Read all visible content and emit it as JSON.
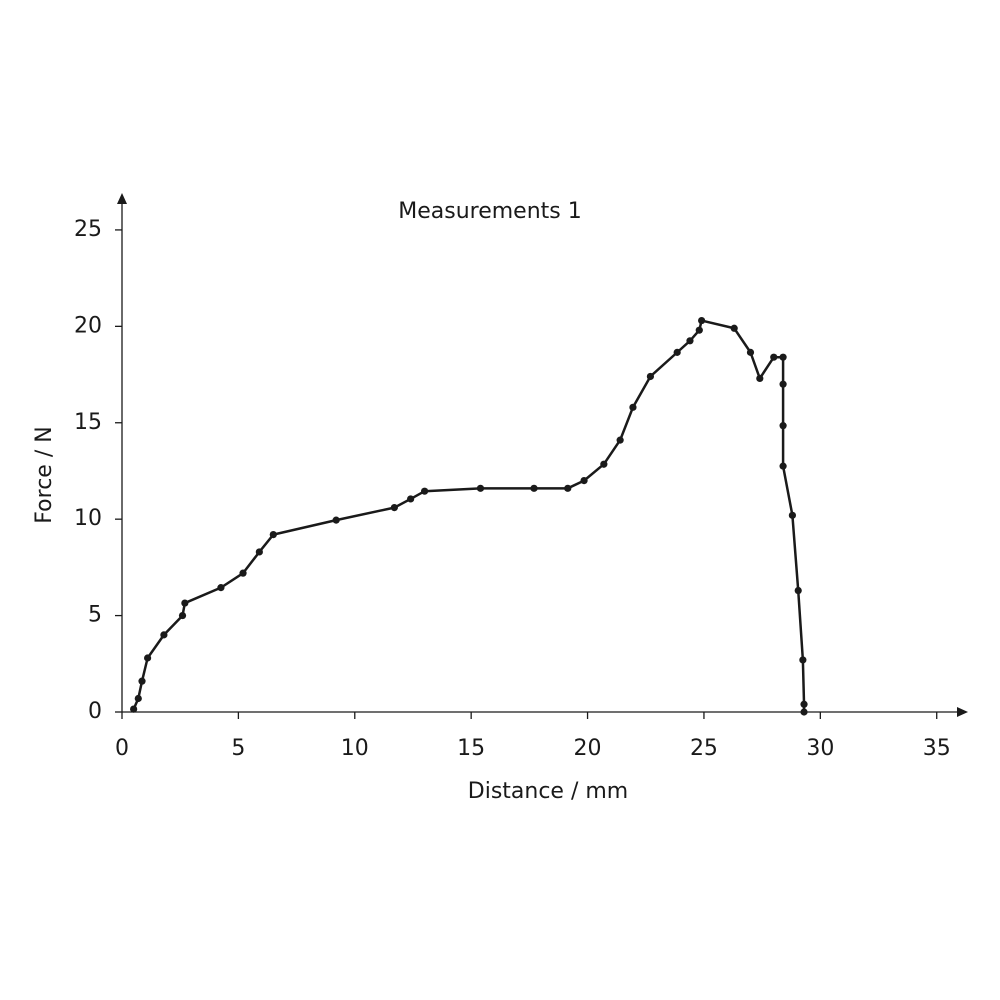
{
  "chart_data": {
    "type": "line",
    "title": "Measurements 1",
    "xlabel": "Distance / mm",
    "ylabel": "Force / N",
    "xlim": [
      0,
      36
    ],
    "ylim": [
      0,
      26.5
    ],
    "xticks": [
      0,
      5,
      10,
      15,
      20,
      25,
      30,
      35
    ],
    "yticks": [
      0,
      5,
      10,
      15,
      20,
      25
    ],
    "markers": true,
    "series": [
      {
        "color": "#1a1a1a",
        "x": [
          0.5,
          0.7,
          0.86,
          1.1,
          1.8,
          2.6,
          2.7,
          4.25,
          5.2,
          5.9,
          6.5,
          9.2,
          11.7,
          12.4,
          13.0,
          15.4,
          17.7,
          19.15,
          19.85,
          20.7,
          21.4,
          21.95,
          22.7,
          23.85,
          24.4,
          24.8,
          24.9,
          26.3,
          27.0,
          27.4,
          28.0,
          28.4,
          28.4,
          28.4,
          28.4,
          28.8,
          29.05,
          29.25,
          29.3,
          29.3
        ],
        "values": [
          0.15,
          0.7,
          1.6,
          2.8,
          4.0,
          5.0,
          5.65,
          6.45,
          7.2,
          8.3,
          9.2,
          9.95,
          10.6,
          11.05,
          11.45,
          11.6,
          11.6,
          11.6,
          12.0,
          12.85,
          14.1,
          15.8,
          17.4,
          18.65,
          19.25,
          19.8,
          20.3,
          19.9,
          18.65,
          17.3,
          18.4,
          18.4,
          17.0,
          14.85,
          12.75,
          10.2,
          6.3,
          2.7,
          0.4,
          0
        ]
      }
    ]
  }
}
